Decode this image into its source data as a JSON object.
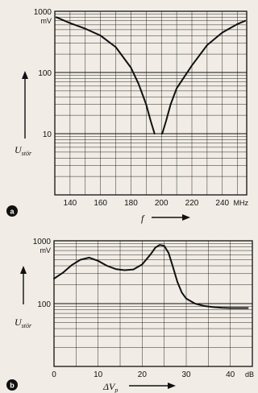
{
  "chart_data": [
    {
      "type": "line",
      "panel_label": "a",
      "xlabel": "f",
      "x_unit": "MHz",
      "ylabel": "U",
      "ylabel_sub": "stör",
      "y_unit": "mV",
      "y_scale": "log",
      "ylim": [
        1,
        1000
      ],
      "xlim": [
        130,
        256
      ],
      "x_ticks": [
        "140",
        "160",
        "180",
        "200",
        "220",
        "240"
      ],
      "y_ticks": [
        "1000",
        "100",
        "10"
      ],
      "grid": true,
      "series": [
        {
          "x": [
            131,
            140,
            150,
            160,
            170,
            180,
            185,
            190,
            193,
            195.5
          ],
          "y": [
            800,
            640,
            520,
            400,
            260,
            120,
            65,
            30,
            16,
            10
          ],
          "x2": [
            200.5,
            203,
            206,
            210,
            220,
            230,
            240,
            250,
            255
          ],
          "y2": [
            10,
            16,
            30,
            55,
            130,
            280,
            450,
            620,
            700
          ]
        }
      ]
    },
    {
      "type": "line",
      "panel_label": "b",
      "xlabel": "ΔV",
      "xlabel_sub": "p",
      "x_unit": "dB",
      "ylabel": "U",
      "ylabel_sub": "stör",
      "y_unit": "mV",
      "y_scale": "log",
      "ylim": [
        10,
        1000
      ],
      "xlim": [
        0,
        45
      ],
      "x_ticks": [
        "0",
        "10",
        "20",
        "30",
        "40"
      ],
      "y_ticks": [
        "1000",
        "100"
      ],
      "grid": true,
      "series": [
        {
          "x": [
            0,
            2,
            4,
            6,
            8,
            10,
            12,
            14,
            16,
            18,
            20,
            22,
            23,
            24,
            25,
            26,
            27,
            28,
            29,
            30,
            32,
            34,
            36,
            38,
            40,
            42,
            44
          ],
          "y": [
            250,
            310,
            410,
            500,
            540,
            480,
            400,
            355,
            340,
            350,
            420,
            620,
            780,
            860,
            830,
            640,
            380,
            220,
            150,
            120,
            100,
            92,
            88,
            86,
            85,
            85,
            85
          ]
        }
      ]
    }
  ],
  "colors": {
    "paper": "#f1ede6",
    "ink": "#111111"
  }
}
